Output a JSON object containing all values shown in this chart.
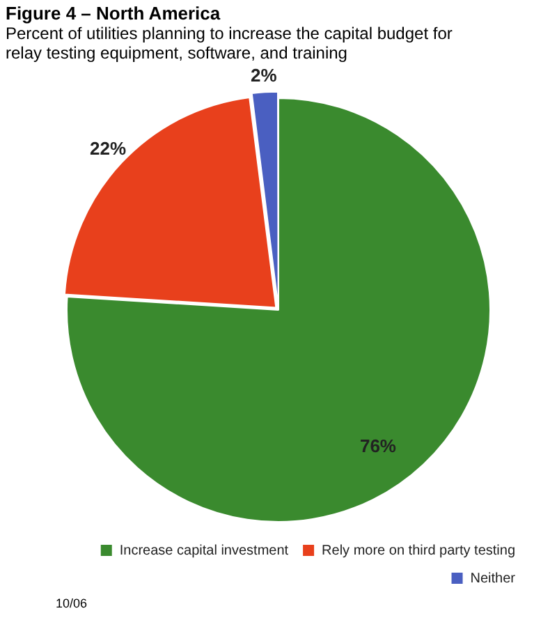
{
  "chart_data": {
    "type": "pie",
    "title": "Figure 4 – North America",
    "subtitle": "Percent of utilities planning to increase the capital budget for relay testing equipment, software, and training",
    "categories": [
      "Increase capital investment",
      "Rely more on third party testing",
      "Neither"
    ],
    "values": [
      76,
      22,
      2
    ],
    "colors": [
      "#3a8a2e",
      "#e8401c",
      "#4a5fc1"
    ],
    "value_labels": [
      "76%",
      "22%",
      "2%"
    ],
    "legend": "bottom right",
    "annotations": [
      "10/06"
    ]
  }
}
